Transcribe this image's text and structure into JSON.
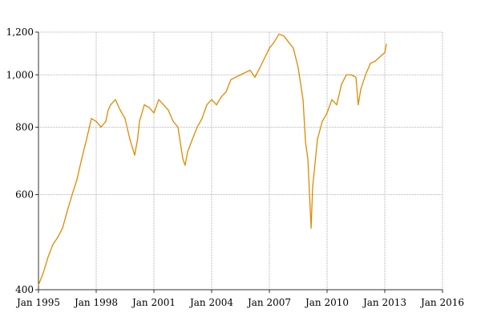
{
  "chart_data": {
    "type": "line",
    "title": "",
    "xlabel": "",
    "ylabel": "",
    "y_scale": "log",
    "xlim": [
      1995.0,
      2016.0
    ],
    "ylim": [
      400,
      1200
    ],
    "grid": true,
    "x_ticks": [
      {
        "value": 1995,
        "label": "Jan 1995"
      },
      {
        "value": 1998,
        "label": "Jan 1998"
      },
      {
        "value": 2001,
        "label": "Jan 2001"
      },
      {
        "value": 2004,
        "label": "Jan 2004"
      },
      {
        "value": 2007,
        "label": "Jan 2007"
      },
      {
        "value": 2010,
        "label": "Jan 2010"
      },
      {
        "value": 2013,
        "label": "Jan 2013"
      },
      {
        "value": 2016,
        "label": "Jan 2016"
      }
    ],
    "y_ticks": [
      {
        "value": 400,
        "label": "400"
      },
      {
        "value": 600,
        "label": "600"
      },
      {
        "value": 800,
        "label": "800"
      },
      {
        "value": 1000,
        "label": "1,000"
      },
      {
        "value": 1200,
        "label": "1,200"
      }
    ],
    "series": [
      {
        "color": "#e08a00",
        "x": [
          1995.0,
          1995.25,
          1995.5,
          1995.75,
          1996.0,
          1996.25,
          1996.5,
          1996.75,
          1997.0,
          1997.25,
          1997.5,
          1997.75,
          1998.0,
          1998.25,
          1998.5,
          1998.62,
          1998.75,
          1999.0,
          1999.25,
          1999.5,
          1999.75,
          2000.0,
          2000.15,
          2000.25,
          2000.5,
          2000.75,
          2001.0,
          2001.25,
          2001.5,
          2001.75,
          2002.0,
          2002.25,
          2002.5,
          2002.62,
          2002.75,
          2003.0,
          2003.25,
          2003.5,
          2003.75,
          2004.0,
          2004.25,
          2004.5,
          2004.75,
          2005.0,
          2005.5,
          2006.0,
          2006.25,
          2006.5,
          2007.0,
          2007.25,
          2007.5,
          2007.75,
          2008.0,
          2008.25,
          2008.5,
          2008.75,
          2008.88,
          2009.0,
          2009.17,
          2009.25,
          2009.5,
          2009.75,
          2010.0,
          2010.25,
          2010.5,
          2010.75,
          2011.0,
          2011.25,
          2011.5,
          2011.62,
          2011.75,
          2012.0,
          2012.25,
          2012.5,
          2012.75,
          2013.0,
          2013.08
        ],
        "y": [
          408,
          430,
          460,
          485,
          500,
          520,
          560,
          600,
          640,
          700,
          760,
          830,
          820,
          800,
          820,
          860,
          880,
          900,
          860,
          830,
          760,
          710,
          760,
          820,
          880,
          870,
          850,
          900,
          880,
          860,
          820,
          800,
          700,
          680,
          720,
          760,
          800,
          830,
          880,
          900,
          880,
          910,
          930,
          980,
          1000,
          1020,
          990,
          1030,
          1120,
          1150,
          1190,
          1180,
          1150,
          1120,
          1030,
          900,
          750,
          700,
          520,
          620,
          760,
          820,
          850,
          900,
          880,
          960,
          1000,
          1000,
          990,
          880,
          940,
          1000,
          1050,
          1060,
          1080,
          1100,
          1140
        ]
      }
    ]
  }
}
